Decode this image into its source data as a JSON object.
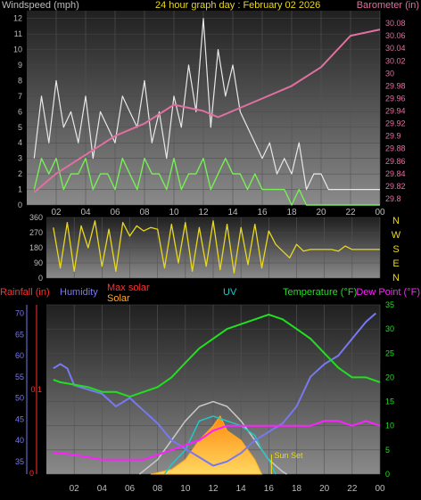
{
  "header": {
    "windspeed_label": "Windspeed (mph)",
    "title": "24 hour graph day : February 02 2026",
    "barometer_label": "Barometer (in)"
  },
  "legend": {
    "rainfall": "Rainfall (in)",
    "humidity": "Humidity",
    "max_solar": "Max solar",
    "solar": "Solar",
    "uv": "UV",
    "temperature": "Temperature (°F)",
    "dew_point": "Dew Point (°F)",
    "sun_set": "Sun Set"
  },
  "colors": {
    "wind_gust": "#e8e8e8",
    "wind_avg": "#77ee55",
    "barometer": "#e070a0",
    "direction": "#e8d820",
    "rainfall": "#ff3030",
    "humidity": "#7878f0",
    "max_solar": "#c8c8c8",
    "solar": "#ffaa20",
    "uv": "#20c8c8",
    "temperature": "#20e020",
    "dew_point": "#ff20ff"
  },
  "chart_data": [
    {
      "type": "line",
      "x_ticks": [
        "02",
        "04",
        "06",
        "08",
        "10",
        "12",
        "14",
        "16",
        "18",
        "20",
        "22",
        "00"
      ],
      "y_left_ticks": [
        "0",
        "1",
        "2",
        "3",
        "4",
        "5",
        "6",
        "7",
        "8",
        "9",
        "10",
        "11",
        "12"
      ],
      "y_right_ticks": [
        "29.8",
        "29.82",
        "29.84",
        "29.86",
        "29.88",
        "29.9",
        "29.92",
        "29.94",
        "29.96",
        "29.98",
        "30",
        "30.02",
        "30.04",
        "30.06",
        "30.08"
      ],
      "ylim_left": [
        0,
        12.5
      ],
      "ylim_right": [
        29.79,
        30.1
      ],
      "series": [
        {
          "key": "gust",
          "x": [
            0.5,
            1,
            1.5,
            2,
            2.5,
            3,
            3.5,
            4,
            4.5,
            5,
            5.5,
            6,
            6.5,
            7,
            7.5,
            8,
            8.5,
            9,
            9.5,
            10,
            10.5,
            11,
            11.5,
            12,
            12.5,
            13,
            13.5,
            14,
            14.5,
            15,
            15.5,
            16,
            16.5,
            17,
            17.5,
            18,
            18.5,
            19,
            19.5,
            20,
            20.5,
            21,
            21.5,
            22,
            22.5,
            23,
            23.5,
            24
          ],
          "values": [
            3,
            7,
            4,
            8,
            5,
            6,
            4,
            7,
            3,
            6,
            5,
            4,
            7,
            6,
            5,
            8,
            4,
            6,
            3,
            7,
            5,
            9,
            6,
            12,
            5,
            10,
            7,
            9,
            6,
            5,
            4,
            3,
            4,
            2,
            3,
            2,
            4,
            1,
            2,
            2,
            1,
            1,
            1,
            1,
            1,
            1,
            1,
            1
          ]
        },
        {
          "key": "average",
          "x": [
            0.5,
            1,
            1.5,
            2,
            2.5,
            3,
            3.5,
            4,
            4.5,
            5,
            5.5,
            6,
            6.5,
            7,
            7.5,
            8,
            8.5,
            9,
            9.5,
            10,
            10.5,
            11,
            11.5,
            12,
            12.5,
            13,
            13.5,
            14,
            14.5,
            15,
            15.5,
            16,
            16.5,
            17,
            17.5,
            18,
            18.5,
            19,
            19.5,
            20,
            20.5,
            21,
            21.5,
            22,
            22.5,
            23,
            23.5,
            24
          ],
          "values": [
            1,
            3,
            2,
            3,
            1,
            2,
            2,
            3,
            1,
            2,
            2,
            1,
            3,
            2,
            1,
            3,
            2,
            2,
            1,
            3,
            1,
            2,
            2,
            3,
            1,
            2,
            3,
            2,
            2,
            1,
            2,
            1,
            1,
            1,
            1,
            0,
            1,
            0,
            0,
            0,
            0,
            0,
            0,
            0,
            0,
            0,
            0,
            0
          ]
        },
        {
          "key": "barometer",
          "x": [
            0.5,
            2,
            4,
            6,
            8,
            10,
            12,
            13,
            14,
            16,
            18,
            20,
            22,
            24
          ],
          "values": [
            29.81,
            29.84,
            29.87,
            29.9,
            29.92,
            29.95,
            29.94,
            29.93,
            29.94,
            29.96,
            29.98,
            30.01,
            30.06,
            30.07
          ]
        }
      ]
    },
    {
      "type": "scatter",
      "y_ticks": [
        "360",
        "270",
        "180",
        "90",
        "0"
      ],
      "compass": [
        "N",
        "W",
        "S",
        "E",
        "N"
      ],
      "ylim": [
        0,
        360
      ],
      "x": [
        0.5,
        1,
        1.5,
        2,
        2.5,
        3,
        3.5,
        4,
        4.5,
        5,
        5.5,
        6,
        6.5,
        7,
        7.5,
        8,
        8.5,
        9,
        9.5,
        10,
        10.5,
        11,
        11.5,
        12,
        12.5,
        13,
        13.5,
        14,
        14.5,
        15,
        15.5,
        16,
        16.5,
        17,
        17.5,
        18,
        18.5,
        19,
        19.5,
        20,
        20.5,
        21,
        21.5,
        22,
        22.5,
        23,
        23.5,
        24
      ],
      "values": [
        300,
        60,
        330,
        40,
        310,
        180,
        340,
        70,
        290,
        40,
        330,
        250,
        310,
        280,
        300,
        290,
        60,
        320,
        90,
        330,
        40,
        300,
        70,
        340,
        50,
        320,
        30,
        300,
        80,
        320,
        60,
        280,
        200,
        160,
        120,
        200,
        160,
        170,
        170,
        170,
        170,
        160,
        190,
        170,
        170,
        170,
        170,
        170
      ]
    },
    {
      "type": "line",
      "y_left_ticks": [
        "35",
        "40",
        "45",
        "50",
        "55",
        "60",
        "65",
        "70"
      ],
      "y_right_ticks": [
        "0",
        "5",
        "10",
        "15",
        "20",
        "25",
        "30",
        "35"
      ],
      "rain_ticks": [
        "0",
        "0.1"
      ],
      "ylim_humidity": [
        32,
        72
      ],
      "ylim_temperature": [
        0,
        35
      ],
      "series": [
        {
          "key": "humidity",
          "x": [
            0.5,
            1,
            1.5,
            2,
            3,
            4,
            5,
            6,
            7,
            8,
            9,
            10,
            11,
            12,
            13,
            14,
            15,
            16,
            17,
            18,
            19,
            20,
            21,
            22,
            23,
            23.7
          ],
          "values": [
            57,
            58,
            57,
            53,
            52,
            51,
            48,
            50,
            47,
            44,
            40,
            38,
            36,
            34,
            35,
            37,
            40,
            42,
            44,
            48,
            55,
            58,
            60,
            64,
            68,
            70
          ]
        },
        {
          "key": "temperature",
          "x": [
            0.5,
            1,
            2,
            3,
            4,
            5,
            6,
            7,
            8,
            9,
            10,
            11,
            12,
            13,
            14,
            15,
            16,
            17,
            18,
            19,
            20,
            21,
            22,
            23,
            24
          ],
          "values": [
            19.5,
            19,
            18.5,
            18,
            17,
            17,
            16,
            17,
            18,
            20,
            23,
            26,
            28,
            30,
            31,
            32,
            33,
            32,
            30,
            28,
            25,
            22,
            20,
            20,
            19
          ]
        },
        {
          "key": "dew_point",
          "x": [
            0.5,
            2,
            3,
            4,
            5,
            6,
            7,
            8,
            9,
            10,
            11,
            12,
            13,
            14,
            15,
            16,
            17,
            18,
            19,
            20,
            21,
            22,
            23,
            24
          ],
          "values": [
            4.5,
            4,
            3.5,
            3,
            3,
            3,
            3,
            4,
            5,
            6,
            7,
            9,
            10,
            10,
            10,
            10,
            10,
            10,
            10,
            11,
            11,
            10,
            11,
            10
          ]
        },
        {
          "key": "max_solar",
          "x": [
            6.7,
            8,
            9,
            10,
            11,
            12,
            13,
            14,
            15,
            16,
            17,
            17.3
          ],
          "values": [
            0,
            3,
            7,
            11,
            14,
            15,
            14,
            11,
            7,
            3,
            0.5,
            0
          ]
        },
        {
          "key": "solar",
          "x": [
            7.5,
            9,
            10,
            11,
            12,
            12.5,
            13,
            14,
            15,
            15.5
          ],
          "values": [
            0,
            1,
            3,
            7,
            10,
            12,
            9,
            7,
            3,
            0
          ]
        },
        {
          "key": "uv",
          "x": [
            8.5,
            9,
            10,
            11,
            12,
            13,
            14,
            15,
            15.5,
            16,
            16.5
          ],
          "values": [
            0,
            2,
            5,
            11,
            12,
            11,
            10,
            8,
            5,
            3,
            0
          ]
        }
      ]
    }
  ]
}
